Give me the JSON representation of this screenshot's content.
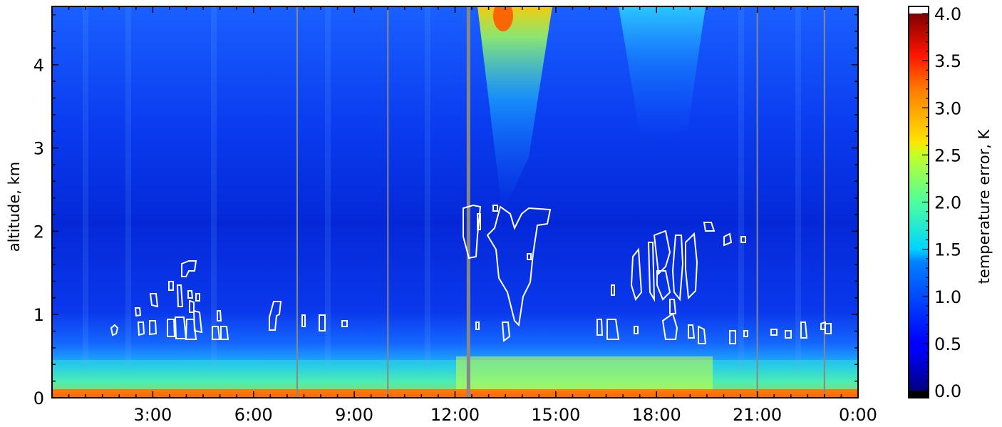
{
  "chart_data": {
    "type": "heatmap",
    "title": "",
    "xlabel": "",
    "ylabel": "altitude, km",
    "x_tick_labels": [
      "3:00",
      "6:00",
      "9:00",
      "12:00",
      "15:00",
      "18:00",
      "21:00",
      "0:00"
    ],
    "x_tick_hours": [
      3,
      6,
      9,
      12,
      15,
      18,
      21,
      24
    ],
    "xlim_hours": [
      0,
      24
    ],
    "ylim_km": [
      0,
      4.7
    ],
    "y_ticks": [
      0,
      1,
      2,
      3,
      4
    ],
    "y_tick_labels": [
      "0",
      "1",
      "2",
      "3",
      "4"
    ],
    "colorbar": {
      "label": "temperature error, K",
      "range": [
        0.0,
        4.0
      ],
      "ticks": [
        "0.0",
        "0.5",
        "1.0",
        "1.5",
        "2.0",
        "2.5",
        "3.0",
        "3.5",
        "4.0"
      ],
      "colormap": "jet",
      "extend_max_color": "#ffffff",
      "under_color": "#000000"
    },
    "field_description_values": {
      "background_error_K": 0.35,
      "near_surface_error_K": [
        1.5,
        2.0
      ],
      "surface_error_K": 3.5,
      "afternoon_column_peak_hour": 13.5,
      "afternoon_column_top_error_K": 3.5
    },
    "vertical_marker_hours": [
      7.3,
      10.0,
      12.4,
      21.0,
      23.0
    ],
    "cloud_contour_color": "#ffffff"
  }
}
